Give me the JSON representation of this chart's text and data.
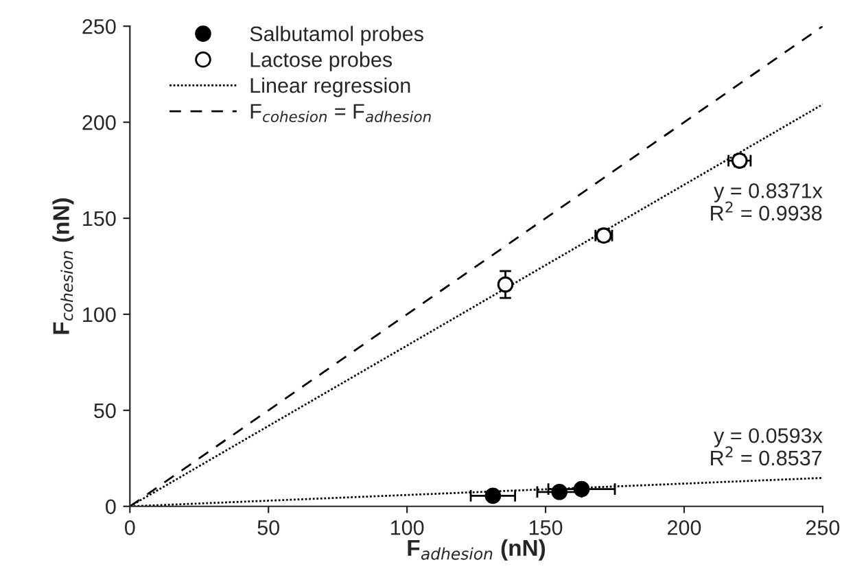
{
  "chart_data": {
    "type": "scatter",
    "xlabel": "F$_{adhesion}$ (nN)",
    "ylabel": "F$_{cohesion}$ (nN)",
    "xlim": [
      0,
      250
    ],
    "ylim": [
      0,
      250
    ],
    "xticks": [
      0,
      50,
      100,
      150,
      200,
      250
    ],
    "yticks": [
      0,
      50,
      100,
      150,
      200,
      250
    ],
    "grid": false,
    "legend": "top left",
    "series": [
      {
        "name": "Salbutamol probes",
        "color": "#000000",
        "marker": "circle",
        "x": [
          131,
          155,
          163
        ],
        "values": [
          5.5,
          7.5,
          9
        ],
        "xerrors": [
          8,
          8,
          12
        ],
        "errors": [
          null,
          null,
          null
        ]
      },
      {
        "name": "Lactose probes",
        "color": "#ffffff",
        "marker": "circle",
        "x": [
          135.5,
          171,
          220
        ],
        "values": [
          115.5,
          141,
          180
        ],
        "xerrors": [
          null,
          3,
          4
        ],
        "errors": [
          7,
          3,
          3
        ]
      },
      {
        "type": "line",
        "name": "Linear regression",
        "color": "#000000",
        "line_style": "dotted",
        "x": [
          0,
          250
        ],
        "values": [
          0,
          209.3
        ]
      },
      {
        "type": "line",
        "name": "F$_{cohesion}$ = F$_{adhesion}$",
        "color": "#000000",
        "line_style": "dashed",
        "x": [
          0,
          250
        ],
        "values": [
          0,
          250
        ]
      },
      {
        "type": "line",
        "color": "#000000",
        "line_style": "dotted",
        "x": [
          0,
          250
        ],
        "values": [
          0,
          14.8
        ]
      }
    ],
    "annotations": [
      "y = 0.8371x\nR$^{2}$ = 0.9938",
      "y = 0.0593x\nR$^{2}$ = 0.8537"
    ]
  }
}
